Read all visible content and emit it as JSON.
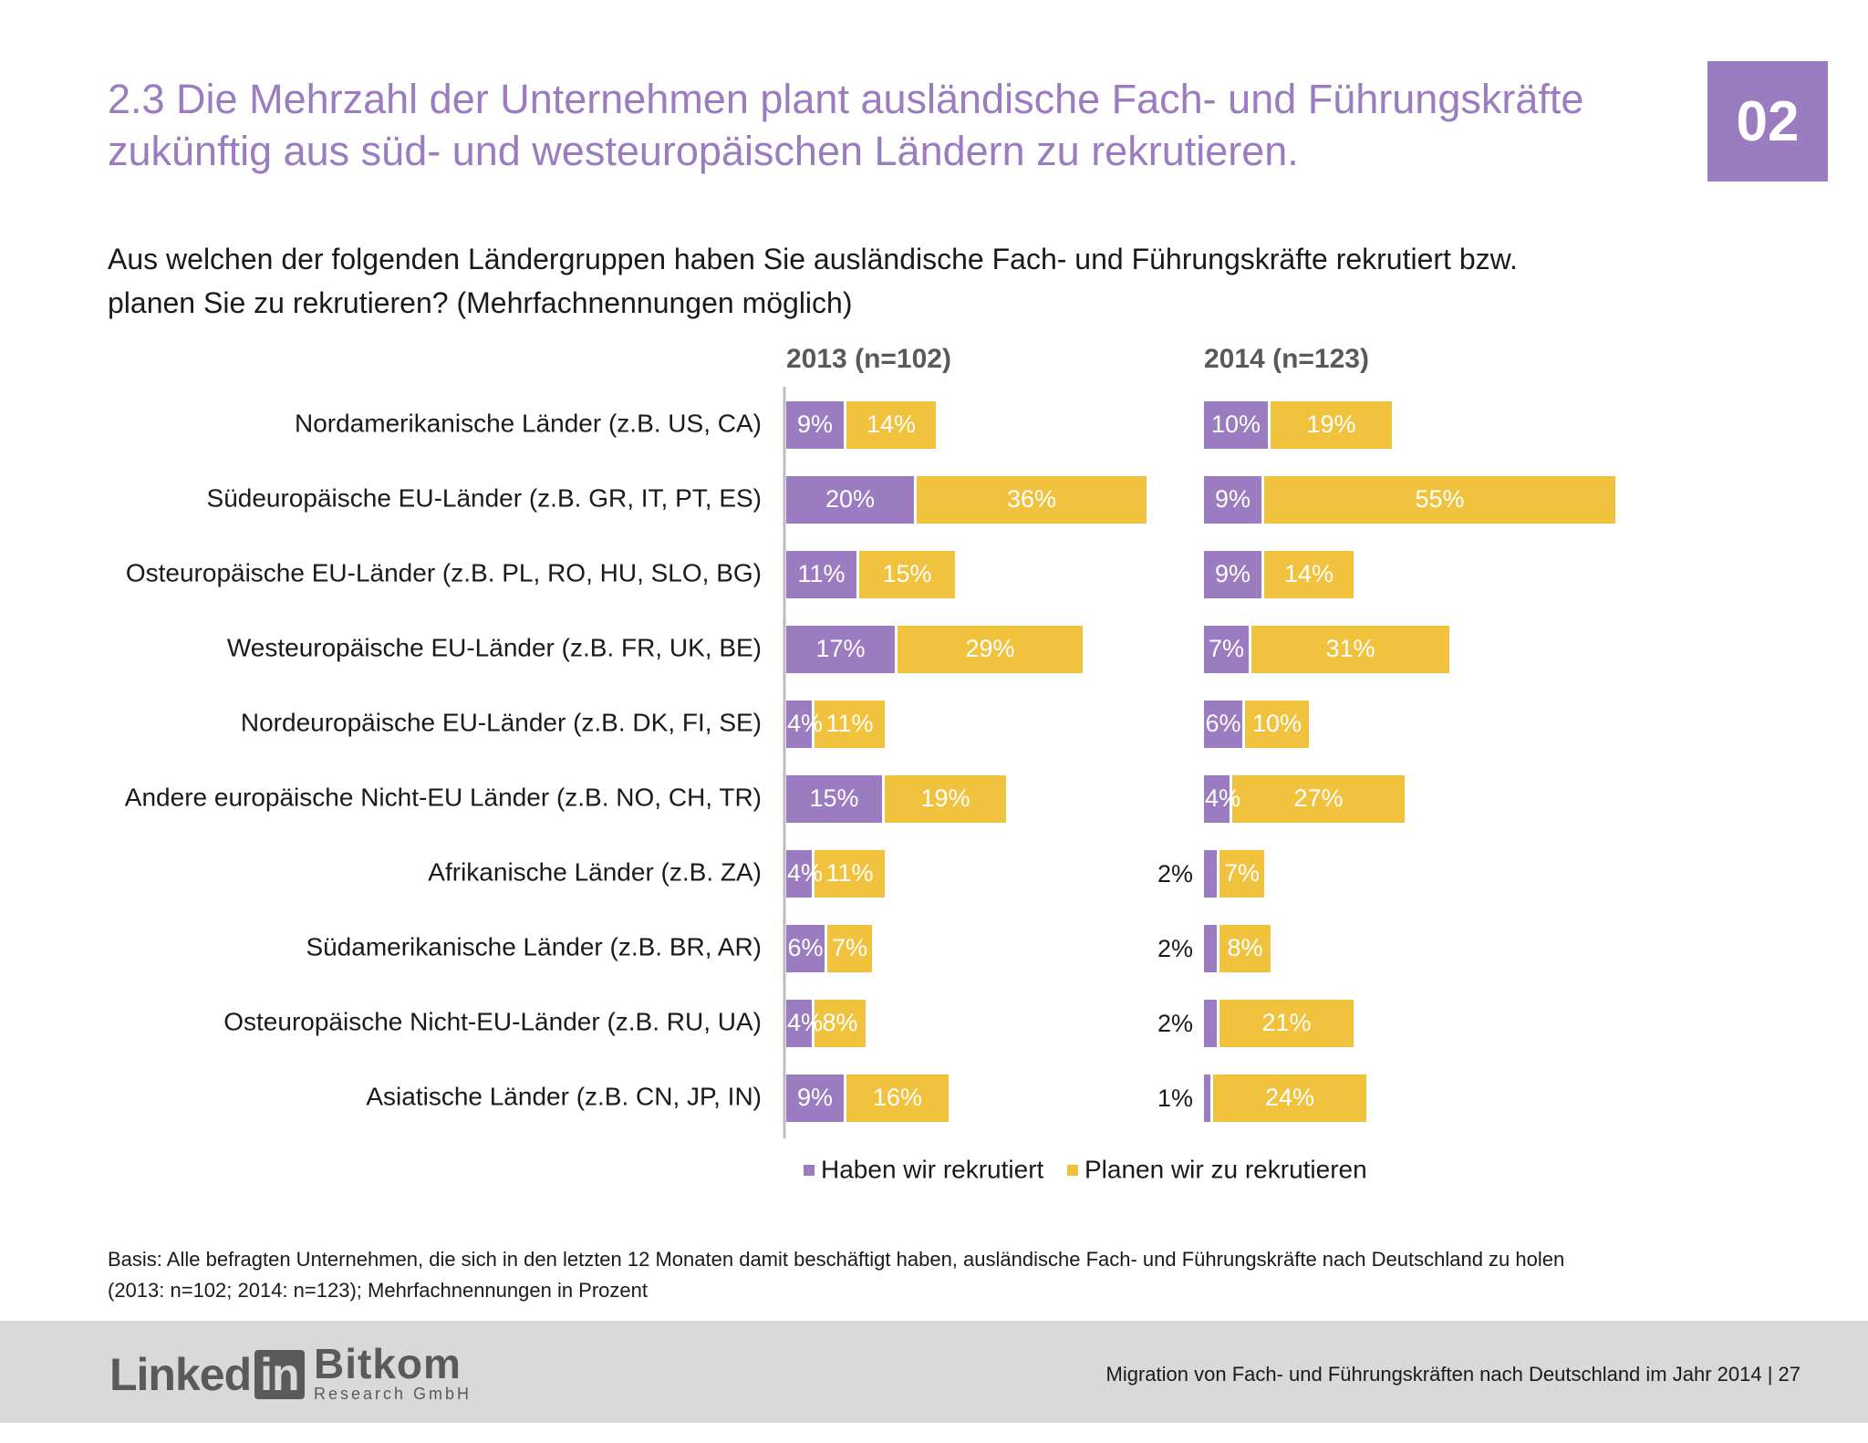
{
  "title": {
    "line1": "2.3 Die Mehrzahl der Unternehmen plant ausländische Fach- und Führungskräfte",
    "line2": "zukünftig aus süd- und westeuropäischen Ländern zu rekrutieren."
  },
  "badge": "02",
  "question": {
    "line1": "Aus welchen der folgenden Ländergruppen haben Sie ausländische Fach- und Führungskräfte rekrutiert bzw.",
    "line2": "planen Sie zu rekrutieren? (Mehrfachnennungen möglich)"
  },
  "colors": {
    "recruited": "#9b7cc0",
    "planned": "#f0c23e",
    "accent": "#9b7cc0"
  },
  "chart_data": {
    "type": "bar",
    "orientation": "horizontal",
    "stacked": true,
    "categories": [
      "Nordamerikanische Länder (z.B. US, CA)",
      "Südeuropäische EU-Länder (z.B. GR, IT, PT, ES)",
      "Osteuropäische EU-Länder (z.B. PL, RO, HU, SLO, BG)",
      "Westeuropäische EU-Länder (z.B. FR, UK, BE)",
      "Nordeuropäische EU-Länder (z.B. DK, FI, SE)",
      "Andere europäische Nicht-EU Länder (z.B. NO, CH, TR)",
      "Afrikanische Länder (z.B. ZA)",
      "Südamerikanische Länder (z.B. BR, AR)",
      "Osteuropäische Nicht-EU-Länder (z.B. RU, UA)",
      "Asiatische Länder (z.B. CN, JP, IN)"
    ],
    "panels": [
      {
        "title": "2013 (n=102)",
        "series": [
          {
            "name": "Haben wir rekrutiert",
            "values": [
              9,
              20,
              11,
              17,
              4,
              15,
              4,
              6,
              4,
              9
            ]
          },
          {
            "name": "Planen wir zu rekrutieren",
            "values": [
              14,
              36,
              15,
              29,
              11,
              19,
              11,
              7,
              8,
              16
            ]
          }
        ]
      },
      {
        "title": "2014 (n=123)",
        "series": [
          {
            "name": "Haben wir rekrutiert",
            "values": [
              10,
              9,
              9,
              7,
              6,
              4,
              2,
              2,
              2,
              1
            ]
          },
          {
            "name": "Planen wir zu rekrutieren",
            "values": [
              19,
              55,
              14,
              31,
              10,
              27,
              7,
              8,
              21,
              24
            ]
          }
        ]
      }
    ],
    "unit": "%",
    "legend": [
      "Haben wir rekrutiert",
      "Planen wir zu rekrutieren"
    ],
    "legend_position": "bottom"
  },
  "basis": {
    "line1": "Basis: Alle befragten Unternehmen, die sich in den letzten 12 Monaten damit beschäftigt haben, ausländische Fach- und Führungskräfte nach Deutschland zu holen",
    "line2": "(2013: n=102; 2014: n=123); Mehrfachnennungen in Prozent"
  },
  "footer": {
    "logo_linkedin": "Linked",
    "logo_linkedin_in": "in",
    "logo_bitkom": "Bitkom",
    "logo_bitkom_sub": "Research GmbH",
    "text": "Migration von Fach- und Führungskräften nach Deutschland im Jahr 2014  |  27"
  }
}
